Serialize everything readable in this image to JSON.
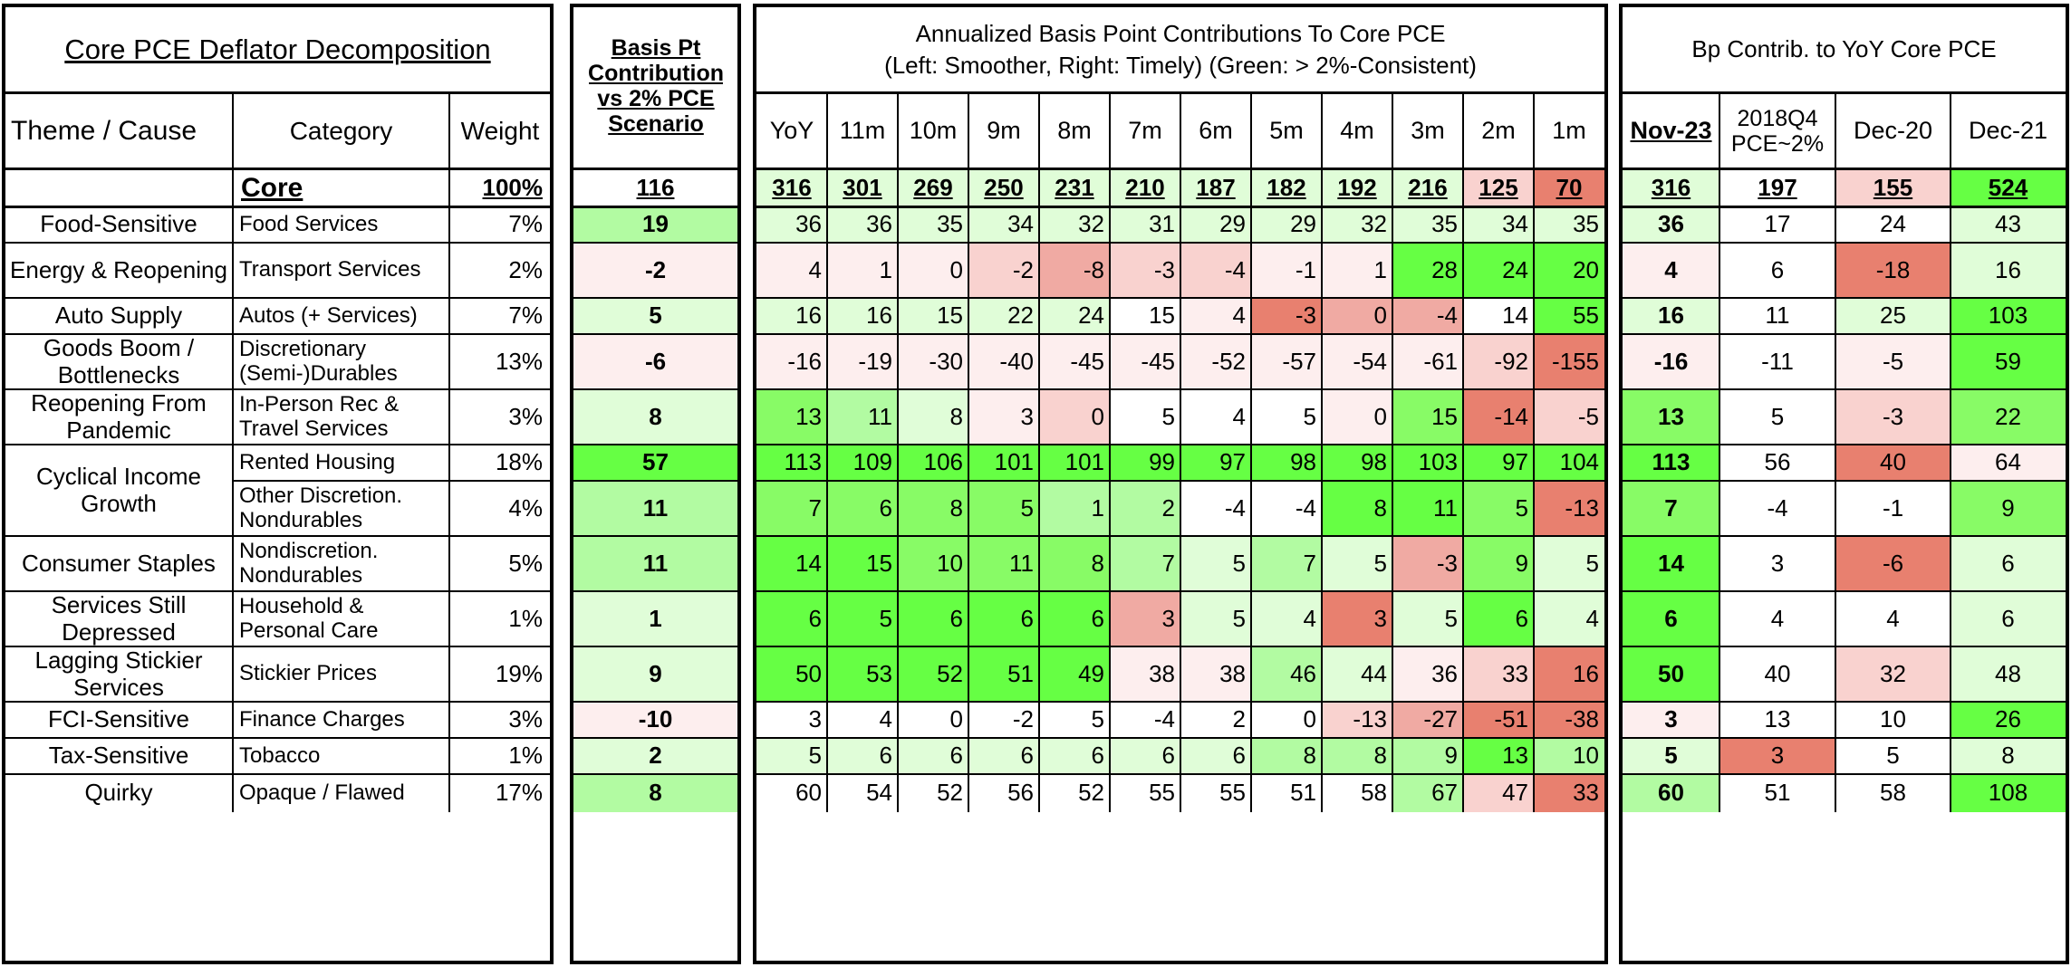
{
  "left": {
    "title": "Core PCE Deflator Decomposition",
    "col_theme": "Theme / Cause",
    "col_category": "Category",
    "col_weight": "Weight"
  },
  "basis": {
    "title": "Basis Pt Contribution vs 2% PCE Scenario"
  },
  "annual": {
    "title_line1": "Annualized Basis Point Contributions To Core PCE",
    "title_line2": "(Left: Smoother, Right: Timely) (Green: > 2%-Consistent)",
    "cols": [
      "YoY",
      "11m",
      "10m",
      "9m",
      "8m",
      "7m",
      "6m",
      "5m",
      "4m",
      "3m",
      "2m",
      "1m"
    ]
  },
  "yoy": {
    "title": "Bp Contrib. to YoY Core PCE",
    "cols": [
      "Nov-23",
      "2018Q4 PCE~2%",
      "Dec-20",
      "Dec-21"
    ]
  },
  "core": {
    "category": "Core",
    "weight": "100%",
    "basis": "116",
    "annual": [
      "316",
      "301",
      "269",
      "250",
      "231",
      "210",
      "187",
      "182",
      "192",
      "216",
      "125",
      "70"
    ],
    "yoy": [
      "316",
      "197",
      "155",
      "524"
    ]
  },
  "rows": [
    {
      "theme": "Food-Sensitive",
      "category": "Food Services",
      "weight": "7%",
      "basis": "19",
      "annual": [
        "36",
        "36",
        "35",
        "34",
        "32",
        "31",
        "29",
        "29",
        "32",
        "35",
        "34",
        "35"
      ],
      "yoy": [
        "36",
        "17",
        "24",
        "43"
      ]
    },
    {
      "theme": "Energy & Reopening",
      "category": "Transport Services",
      "weight": "2%",
      "basis": "-2",
      "annual": [
        "4",
        "1",
        "0",
        "-2",
        "-8",
        "-3",
        "-4",
        "-1",
        "1",
        "28",
        "24",
        "20"
      ],
      "yoy": [
        "4",
        "6",
        "-18",
        "16"
      ]
    },
    {
      "theme": "Auto Supply",
      "category": "Autos (+ Services)",
      "weight": "7%",
      "basis": "5",
      "annual": [
        "16",
        "16",
        "15",
        "22",
        "24",
        "15",
        "4",
        "-3",
        "0",
        "-4",
        "14",
        "55"
      ],
      "yoy": [
        "16",
        "11",
        "25",
        "103"
      ]
    },
    {
      "theme": "Goods Boom / Bottlenecks",
      "category": "Discretionary (Semi-)Durables",
      "weight": "13%",
      "basis": "-6",
      "annual": [
        "-16",
        "-19",
        "-30",
        "-40",
        "-45",
        "-45",
        "-52",
        "-57",
        "-54",
        "-61",
        "-92",
        "-155"
      ],
      "yoy": [
        "-16",
        "-11",
        "-5",
        "59"
      ]
    },
    {
      "theme": "Reopening From Pandemic",
      "category": "In-Person Rec & Travel Services",
      "weight": "3%",
      "basis": "8",
      "annual": [
        "13",
        "11",
        "8",
        "3",
        "0",
        "5",
        "4",
        "5",
        "0",
        "15",
        "-14",
        "-5"
      ],
      "yoy": [
        "13",
        "5",
        "-3",
        "22"
      ]
    },
    {
      "theme": "Cyclical Income Growth",
      "category": "Rented Housing",
      "weight": "18%",
      "basis": "57",
      "annual": [
        "113",
        "109",
        "106",
        "101",
        "101",
        "99",
        "97",
        "98",
        "98",
        "103",
        "97",
        "104"
      ],
      "yoy": [
        "113",
        "56",
        "40",
        "64"
      ]
    },
    {
      "theme": "",
      "category": "Other Discretion. Nondurables",
      "weight": "4%",
      "basis": "11",
      "annual": [
        "7",
        "6",
        "8",
        "5",
        "1",
        "2",
        "-4",
        "-4",
        "8",
        "11",
        "5",
        "-13"
      ],
      "yoy": [
        "7",
        "-4",
        "-1",
        "9"
      ]
    },
    {
      "theme": "Consumer Staples",
      "category": "Nondiscretion. Nondurables",
      "weight": "5%",
      "basis": "11",
      "annual": [
        "14",
        "15",
        "10",
        "11",
        "8",
        "7",
        "5",
        "7",
        "5",
        "-3",
        "9",
        "5"
      ],
      "yoy": [
        "14",
        "3",
        "-6",
        "6"
      ]
    },
    {
      "theme": "Services Still Depressed",
      "category": "Household & Personal Care",
      "weight": "1%",
      "basis": "1",
      "annual": [
        "6",
        "5",
        "6",
        "6",
        "6",
        "3",
        "5",
        "4",
        "3",
        "5",
        "6",
        "4"
      ],
      "yoy": [
        "6",
        "4",
        "4",
        "6"
      ]
    },
    {
      "theme": "Lagging Stickier Services",
      "category": "Stickier Prices",
      "weight": "19%",
      "basis": "9",
      "annual": [
        "50",
        "53",
        "52",
        "51",
        "49",
        "38",
        "38",
        "46",
        "44",
        "36",
        "33",
        "16"
      ],
      "yoy": [
        "50",
        "40",
        "32",
        "48"
      ]
    },
    {
      "theme": "FCI-Sensitive",
      "category": "Finance Charges",
      "weight": "3%",
      "basis": "-10",
      "annual": [
        "3",
        "4",
        "0",
        "-2",
        "5",
        "-4",
        "2",
        "0",
        "-13",
        "-27",
        "-51",
        "-38"
      ],
      "yoy": [
        "3",
        "13",
        "10",
        "26"
      ]
    },
    {
      "theme": "Tax-Sensitive",
      "category": "Tobacco",
      "weight": "1%",
      "basis": "2",
      "annual": [
        "5",
        "6",
        "6",
        "6",
        "6",
        "6",
        "6",
        "8",
        "8",
        "9",
        "13",
        "10"
      ],
      "yoy": [
        "5",
        "3",
        "5",
        "8"
      ]
    },
    {
      "theme": "Quirky",
      "category": "Opaque / Flawed",
      "weight": "17%",
      "basis": "8",
      "annual": [
        "60",
        "54",
        "52",
        "56",
        "52",
        "55",
        "55",
        "51",
        "58",
        "67",
        "47",
        "33"
      ],
      "yoy": [
        "60",
        "51",
        "58",
        "108"
      ]
    }
  ],
  "colors": {
    "scale": {
      "G": "#66ff44",
      "g3": "#88fb66",
      "g2": "#b2fba2",
      "g1": "#e0fdd8",
      "W": "#ffffff",
      "r1": "#fdeeee",
      "r2": "#f9d2cf",
      "r3": "#f0aaa3",
      "R": "#e8806f"
    },
    "core": {
      "basis": "W",
      "annual": [
        "g1",
        "g1",
        "g1",
        "g1",
        "g1",
        "g1",
        "g1",
        "g1",
        "g1",
        "g1",
        "r2",
        "R"
      ],
      "yoy": [
        "g1",
        "W",
        "r2",
        "G"
      ]
    },
    "rows": [
      {
        "basis": "g2",
        "annual": [
          "g1",
          "g1",
          "g1",
          "g1",
          "g1",
          "g1",
          "g1",
          "g1",
          "g1",
          "g1",
          "g1",
          "g1"
        ],
        "yoy": [
          "g1",
          "W",
          "W",
          "g1"
        ]
      },
      {
        "basis": "r1",
        "annual": [
          "r1",
          "r1",
          "r1",
          "r2",
          "r3",
          "r2",
          "r2",
          "r1",
          "r1",
          "G",
          "G",
          "G"
        ],
        "yoy": [
          "r1",
          "W",
          "R",
          "g1"
        ]
      },
      {
        "basis": "g1",
        "annual": [
          "g1",
          "g1",
          "g1",
          "g1",
          "g1",
          "W",
          "r1",
          "R",
          "r3",
          "r3",
          "W",
          "G"
        ],
        "yoy": [
          "g1",
          "W",
          "g1",
          "G"
        ]
      },
      {
        "basis": "r1",
        "annual": [
          "r1",
          "r1",
          "r1",
          "r1",
          "r1",
          "r1",
          "r1",
          "r1",
          "r1",
          "r1",
          "r2",
          "R"
        ],
        "yoy": [
          "r1",
          "W",
          "r1",
          "G"
        ]
      },
      {
        "basis": "g1",
        "annual": [
          "g3",
          "g2",
          "g1",
          "r1",
          "r2",
          "W",
          "W",
          "W",
          "r1",
          "g3",
          "R",
          "r2"
        ],
        "yoy": [
          "g3",
          "W",
          "r2",
          "g3"
        ]
      },
      {
        "basis": "G",
        "annual": [
          "G",
          "G",
          "G",
          "G",
          "G",
          "G",
          "G",
          "G",
          "G",
          "G",
          "G",
          "G"
        ],
        "yoy": [
          "G",
          "W",
          "R",
          "r1"
        ]
      },
      {
        "basis": "g2",
        "annual": [
          "g3",
          "g3",
          "g3",
          "g3",
          "g2",
          "g2",
          "W",
          "W",
          "G",
          "G",
          "g3",
          "R"
        ],
        "yoy": [
          "g3",
          "W",
          "W",
          "g3"
        ]
      },
      {
        "basis": "g2",
        "annual": [
          "G",
          "G",
          "g3",
          "g3",
          "g3",
          "g2",
          "g1",
          "g2",
          "g1",
          "r3",
          "g3",
          "g1"
        ],
        "yoy": [
          "G",
          "W",
          "R",
          "g1"
        ]
      },
      {
        "basis": "g1",
        "annual": [
          "G",
          "G",
          "G",
          "G",
          "G",
          "r3",
          "g1",
          "g1",
          "R",
          "g1",
          "G",
          "g1"
        ],
        "yoy": [
          "G",
          "W",
          "W",
          "g1"
        ]
      },
      {
        "basis": "g1",
        "annual": [
          "G",
          "G",
          "G",
          "G",
          "G",
          "r1",
          "r1",
          "g2",
          "g1",
          "r1",
          "r2",
          "R"
        ],
        "yoy": [
          "G",
          "W",
          "r2",
          "g1"
        ]
      },
      {
        "basis": "r1",
        "annual": [
          "W",
          "W",
          "W",
          "W",
          "W",
          "W",
          "W",
          "W",
          "r2",
          "r3",
          "R",
          "R"
        ],
        "yoy": [
          "r1",
          "W",
          "W",
          "G"
        ]
      },
      {
        "basis": "g1",
        "annual": [
          "g1",
          "g1",
          "g1",
          "g1",
          "g1",
          "g1",
          "g1",
          "g2",
          "g2",
          "g2",
          "G",
          "g2"
        ],
        "yoy": [
          "g1",
          "R",
          "W",
          "g1"
        ]
      },
      {
        "basis": "g2",
        "annual": [
          "W",
          "W",
          "W",
          "W",
          "W",
          "W",
          "W",
          "W",
          "W",
          "g2",
          "r2",
          "R"
        ],
        "yoy": [
          "g2",
          "W",
          "W",
          "G"
        ]
      }
    ]
  }
}
